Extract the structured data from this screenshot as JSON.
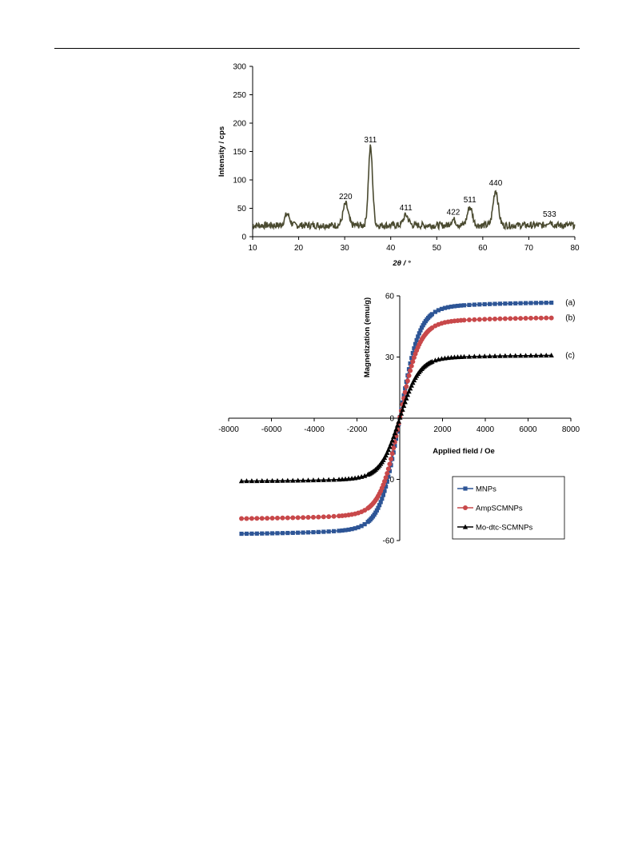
{
  "colors": {
    "xrd_line": "#4a4a30",
    "axis": "#000000",
    "mnps": "#2d5596",
    "ampscmnps": "#c8484a",
    "modtcscmnps": "#000000"
  },
  "chart_data": [
    {
      "type": "line",
      "xlabel": "2θ / °",
      "ylabel": "Intensity / cps",
      "xlim": [
        10,
        80
      ],
      "ylim": [
        0,
        300
      ],
      "x_ticks": [
        "10",
        "20",
        "30",
        "40",
        "50",
        "60",
        "70",
        "80"
      ],
      "y_ticks": [
        "0",
        "50",
        "100",
        "150",
        "200",
        "250",
        "300"
      ],
      "grid": false,
      "baseline": 20,
      "peaks": [
        {
          "x": 17.5,
          "y": 40,
          "label": ""
        },
        {
          "x": 30.2,
          "y": 58,
          "label": "220"
        },
        {
          "x": 35.6,
          "y": 158,
          "label": "311"
        },
        {
          "x": 43.3,
          "y": 38,
          "label": "411"
        },
        {
          "x": 53.6,
          "y": 30,
          "label": "422"
        },
        {
          "x": 57.2,
          "y": 52,
          "label": "511"
        },
        {
          "x": 62.8,
          "y": 82,
          "label": "440"
        },
        {
          "x": 74.5,
          "y": 27,
          "label": "533"
        }
      ]
    },
    {
      "type": "scatter",
      "xlabel": "Applied field / Oe",
      "ylabel": "Magnetization (emu/g)",
      "xlim": [
        -8000,
        8000
      ],
      "ylim": [
        -60,
        60
      ],
      "x_ticks": [
        "-8000",
        "-6000",
        "-4000",
        "-2000",
        "0",
        "2000",
        "4000",
        "6000",
        "8000"
      ],
      "y_ticks": [
        "-60",
        "-30",
        "0",
        "30",
        "60"
      ],
      "grid": false,
      "legend_position": "bottom-right",
      "series": [
        {
          "name": "MNPs",
          "end_label": "(a)",
          "saturation": 57,
          "x_range": [
            -7400,
            7300
          ],
          "marker": "square"
        },
        {
          "name": "AmpSCMNPs",
          "end_label": "(b)",
          "saturation": 49.5,
          "x_range": [
            -7400,
            7300
          ],
          "marker": "circle"
        },
        {
          "name": "Mo-dtc-SCMNPs",
          "end_label": "(c)",
          "saturation": 31,
          "x_range": [
            -7400,
            7300
          ],
          "marker": "triangle"
        }
      ]
    }
  ]
}
